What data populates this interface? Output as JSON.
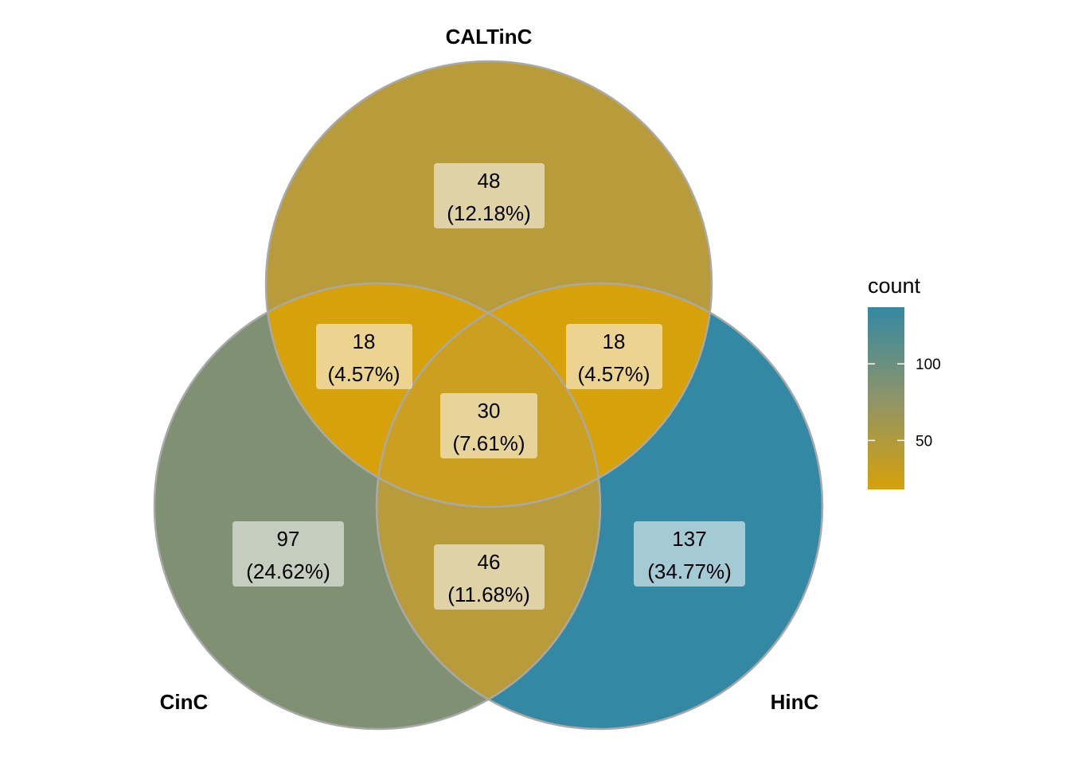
{
  "sets": [
    {
      "id": "caltinc",
      "label": "CALTinC"
    },
    {
      "id": "cinc",
      "label": "CinC"
    },
    {
      "id": "hinc",
      "label": "HinC"
    }
  ],
  "regions": [
    {
      "id": "caltinc-only",
      "sets": [
        "CALTinC"
      ],
      "count": "48",
      "percent": "(12.18%)",
      "value": 48,
      "fill": "#b89b3a"
    },
    {
      "id": "cinc-only",
      "sets": [
        "CinC"
      ],
      "count": "97",
      "percent": "(24.62%)",
      "value": 97,
      "fill": "#7f9172"
    },
    {
      "id": "hinc-only",
      "sets": [
        "HinC"
      ],
      "count": "137",
      "percent": "(34.77%)",
      "value": 137,
      "fill": "#3389a3"
    },
    {
      "id": "caltinc-cinc",
      "sets": [
        "CALTinC",
        "CinC"
      ],
      "count": "18",
      "percent": "(4.57%)",
      "value": 18,
      "fill": "#d6a109"
    },
    {
      "id": "caltinc-hinc",
      "sets": [
        "CALTinC",
        "HinC"
      ],
      "count": "18",
      "percent": "(4.57%)",
      "value": 18,
      "fill": "#d6a109"
    },
    {
      "id": "cinc-hinc",
      "sets": [
        "CinC",
        "HinC"
      ],
      "count": "46",
      "percent": "(11.68%)",
      "value": 46,
      "fill": "#b89b3a"
    },
    {
      "id": "all-three",
      "sets": [
        "CALTinC",
        "CinC",
        "HinC"
      ],
      "count": "30",
      "percent": "(7.61%)",
      "value": 30,
      "fill": "#cba021"
    }
  ],
  "legend": {
    "title": "count",
    "min": 18,
    "max": 137,
    "color_low": "#d6a109",
    "color_high": "#3389a3",
    "ticks": [
      {
        "label": "50",
        "value": 50
      },
      {
        "label": "100",
        "value": 100
      }
    ]
  },
  "colors": {
    "outline": "#a9a9a9",
    "label_box_opacity": 0.55
  }
}
